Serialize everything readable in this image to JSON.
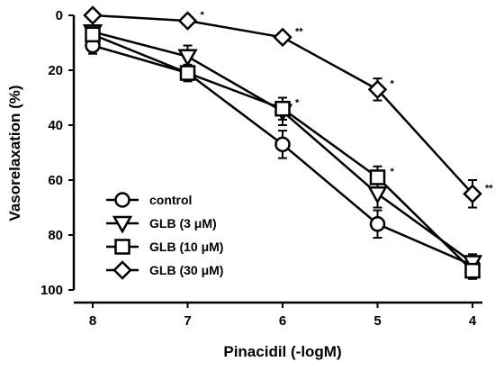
{
  "chart_data": {
    "type": "line",
    "xlabel": "Pinacidil (-logM)",
    "ylabel": "Vasorelaxation (%)",
    "x": [
      8,
      7,
      6,
      5,
      4
    ],
    "x_ticks": [
      "8",
      "7",
      "6",
      "5",
      "4"
    ],
    "xlim": [
      8,
      4
    ],
    "ylim": [
      0,
      100
    ],
    "y_inverted": true,
    "y_ticks": [
      "0",
      "20",
      "40",
      "60",
      "80",
      "100"
    ],
    "y_tick_values": [
      0,
      20,
      40,
      60,
      80,
      100
    ],
    "grid": false,
    "legend_position": "bottom-left",
    "series": [
      {
        "name": "control",
        "marker": "circle",
        "values": [
          11,
          21,
          47,
          76,
          91
        ],
        "errors": [
          3,
          3,
          5,
          5,
          3
        ]
      },
      {
        "name": "GLB (3 μM)",
        "marker": "triangle-down",
        "values": [
          6,
          15,
          35,
          65,
          90
        ],
        "errors": [
          2,
          4,
          5,
          5,
          3
        ]
      },
      {
        "name": "GLB (10 μM)",
        "marker": "square",
        "values": [
          7,
          21,
          34,
          59,
          93
        ],
        "errors": [
          2,
          3,
          4,
          4,
          3
        ]
      },
      {
        "name": "GLB (30 μM)",
        "marker": "diamond",
        "values": [
          0,
          2,
          8,
          27,
          65
        ],
        "errors": [
          1,
          1,
          1,
          4,
          5
        ]
      }
    ],
    "annotations": [
      {
        "x": 7,
        "y": 2,
        "text": "*"
      },
      {
        "x": 6,
        "y": 8,
        "text": "**"
      },
      {
        "x": 6,
        "y": 34,
        "text": "*"
      },
      {
        "x": 5,
        "y": 27,
        "text": "*"
      },
      {
        "x": 5,
        "y": 59,
        "text": "*"
      },
      {
        "x": 4,
        "y": 65,
        "text": "**"
      }
    ],
    "colors": {
      "line": "#000000",
      "marker_fill": "#ffffff"
    }
  }
}
